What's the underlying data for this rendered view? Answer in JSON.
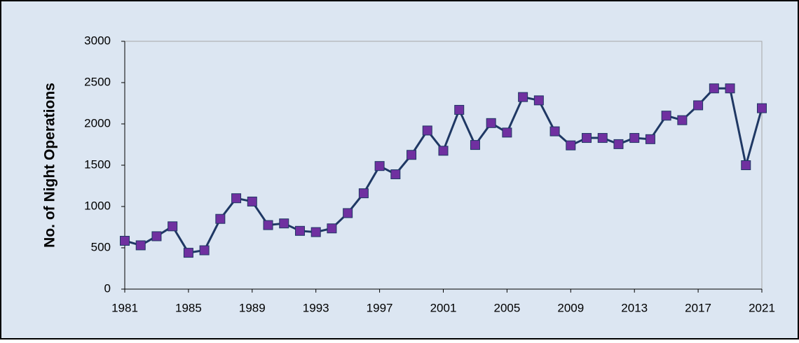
{
  "chart_data": {
    "type": "line",
    "y_label": "No. of Night Operations",
    "x": [
      1981,
      1982,
      1983,
      1984,
      1985,
      1986,
      1987,
      1988,
      1989,
      1990,
      1991,
      1992,
      1993,
      1994,
      1995,
      1996,
      1997,
      1998,
      1999,
      2000,
      2001,
      2002,
      2003,
      2004,
      2005,
      2006,
      2007,
      2008,
      2009,
      2010,
      2011,
      2012,
      2013,
      2014,
      2015,
      2016,
      2017,
      2018,
      2019,
      2020,
      2021
    ],
    "series": [
      {
        "color": "#1f3864",
        "marker_color": "#7030a0",
        "values": [
          585,
          530,
          640,
          760,
          440,
          470,
          850,
          1100,
          1060,
          775,
          795,
          705,
          690,
          735,
          920,
          1160,
          1490,
          1390,
          1625,
          1920,
          1675,
          2170,
          1745,
          2010,
          1895,
          2325,
          2285,
          1910,
          1740,
          1830,
          1830,
          1755,
          1830,
          1815,
          2100,
          2045,
          2225,
          2430,
          2430,
          1500,
          2190
        ]
      }
    ],
    "xlim": [
      1981,
      2021
    ],
    "xticks": [
      1981,
      1985,
      1989,
      1993,
      1997,
      2001,
      2005,
      2009,
      2013,
      2017,
      2021
    ],
    "ylim": [
      0,
      3000
    ],
    "yticks": [
      0,
      500,
      1000,
      1500,
      2000,
      2500,
      3000
    ]
  }
}
